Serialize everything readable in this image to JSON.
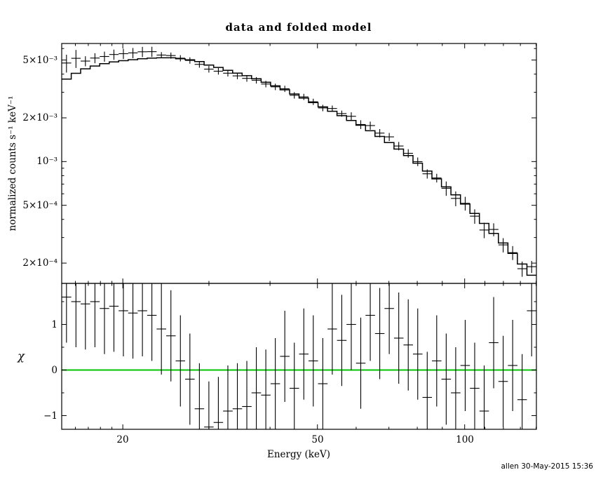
{
  "title": "data and folded model",
  "timestamp": "allen 30-May-2015 15:36",
  "colors": {
    "foreground": "#000000",
    "model": "#000000",
    "zero_line": "#00c400",
    "timestamp": "#008080",
    "background": "#ffffff"
  },
  "top_panel": {
    "ylabel": "normalized counts s⁻¹ keV⁻¹",
    "yscale": "log",
    "ylim": [
      0.000145,
      0.0065
    ],
    "ytick_labels": [
      "5×10⁻³",
      "2×10⁻³",
      "10⁻³",
      "5×10⁻⁴",
      "2×10⁻⁴"
    ],
    "ytick_values": [
      0.005,
      0.002,
      0.001,
      0.0005,
      0.0002
    ],
    "minor_ticks": [
      0.0003,
      0.0004,
      0.0006,
      0.0007,
      0.0008,
      0.0009,
      0.003,
      0.004,
      0.006
    ]
  },
  "bottom_panel": {
    "ylabel": "χ",
    "yscale": "linear",
    "ylim": [
      -1.3,
      1.9
    ],
    "ytick_labels": [
      "1",
      "0",
      "−1"
    ],
    "ytick_values": [
      1,
      0,
      -1
    ],
    "minor_ticks": [
      -0.5,
      0.5,
      1.5
    ],
    "zero_line_value": 0
  },
  "xaxis": {
    "label": "Energy (keV)",
    "xscale": "log",
    "xlim": [
      15,
      140.18
    ],
    "xtick_labels": [
      "20",
      "50",
      "100"
    ],
    "xtick_values": [
      20,
      50,
      100
    ],
    "minor_ticks": [
      16,
      17,
      18,
      19,
      30,
      40,
      60,
      70,
      80,
      90,
      110,
      120,
      130,
      140
    ]
  },
  "chart_data": {
    "type": "line",
    "description": "X-ray spectrum: binned data with error bars plus stepped folded-model histogram (top, log-log) and chi residuals with unit error bars (bottom).",
    "bin_edges": [
      15.0,
      15.69,
      16.4,
      17.15,
      17.94,
      18.76,
      19.61,
      20.51,
      21.45,
      22.43,
      23.45,
      24.53,
      25.65,
      26.82,
      28.05,
      29.33,
      30.67,
      32.07,
      33.54,
      35.07,
      36.67,
      38.35,
      40.1,
      41.93,
      43.85,
      45.86,
      47.95,
      50.14,
      52.44,
      54.83,
      57.34,
      59.96,
      62.7,
      65.57,
      68.56,
      71.7,
      74.98,
      78.4,
      81.99,
      85.73,
      89.65,
      93.75,
      98.04,
      102.52,
      107.2,
      112.1,
      117.23,
      122.59,
      128.19,
      134.05,
      140.18
    ],
    "model": [
      0.0037,
      0.00405,
      0.00435,
      0.00455,
      0.00472,
      0.00485,
      0.00495,
      0.00503,
      0.0051,
      0.00515,
      0.00518,
      0.00518,
      0.0051,
      0.00502,
      0.00488,
      0.00462,
      0.00445,
      0.00425,
      0.00406,
      0.0039,
      0.00372,
      0.00352,
      0.00332,
      0.00312,
      0.00292,
      0.00274,
      0.00255,
      0.00238,
      0.00222,
      0.00207,
      0.00192,
      0.00178,
      0.00163,
      0.00149,
      0.00135,
      0.00122,
      0.0011,
      0.000975,
      0.00086,
      0.00076,
      0.00067,
      0.00059,
      0.00051,
      0.00044,
      0.000375,
      0.00032,
      0.000275,
      0.000233,
      0.000197,
      0.000165
    ],
    "data": [
      0.00477,
      0.00514,
      0.00492,
      0.00516,
      0.00529,
      0.00546,
      0.00553,
      0.0056,
      0.0057,
      0.00571,
      0.00541,
      0.00537,
      0.00515,
      0.00497,
      0.00467,
      0.00433,
      0.00419,
      0.00406,
      0.00389,
      0.00374,
      0.00363,
      0.00342,
      0.00327,
      0.00317,
      0.00286,
      0.00279,
      0.00258,
      0.00234,
      0.00232,
      0.00214,
      0.00205,
      0.0018,
      0.00177,
      0.00157,
      0.00148,
      0.00128,
      0.00114,
      0.000999,
      0.000824,
      0.000771,
      0.000655,
      0.000558,
      0.000516,
      0.000421,
      0.000338,
      0.000341,
      0.000267,
      0.000236,
      0.000183,
      0.000189
    ],
    "data_err": [
      0.00067,
      0.00073,
      0.00039,
      0.00041,
      0.00042,
      0.00044,
      0.00045,
      0.00045,
      0.00046,
      0.00046,
      0.00026,
      0.00026,
      0.000255,
      0.00025,
      0.00024,
      0.00023,
      0.00022,
      0.00021,
      0.0002,
      0.000195,
      0.000186,
      0.000176,
      0.000166,
      0.000156,
      0.000146,
      0.000137,
      0.000128,
      0.000119,
      0.000111,
      0.000104,
      0.000134,
      0.000125,
      0.000114,
      0.000104,
      9.5e-05,
      8.5e-05,
      7.7e-05,
      6.8e-05,
      6e-05,
      5.3e-05,
      7.4e-05,
      6.5e-05,
      5.6e-05,
      4.8e-05,
      4.1e-05,
      3.5e-05,
      3e-05,
      2.6e-05,
      2.2e-05,
      1.8e-05
    ],
    "chi": [
      1.6,
      1.5,
      1.45,
      1.5,
      1.35,
      1.4,
      1.3,
      1.25,
      1.3,
      1.2,
      0.9,
      0.75,
      0.2,
      -0.2,
      -0.85,
      -1.25,
      -1.15,
      -0.9,
      -0.85,
      -0.8,
      -0.5,
      -0.55,
      -0.3,
      0.3,
      -0.4,
      0.35,
      0.2,
      -0.3,
      0.9,
      0.65,
      1.0,
      0.15,
      1.2,
      0.8,
      1.35,
      0.7,
      0.55,
      0.35,
      -0.6,
      0.2,
      -0.2,
      -0.5,
      0.1,
      -0.4,
      -0.9,
      0.6,
      -0.25,
      0.1,
      -0.65,
      1.3
    ],
    "chi_err": 1.0
  }
}
